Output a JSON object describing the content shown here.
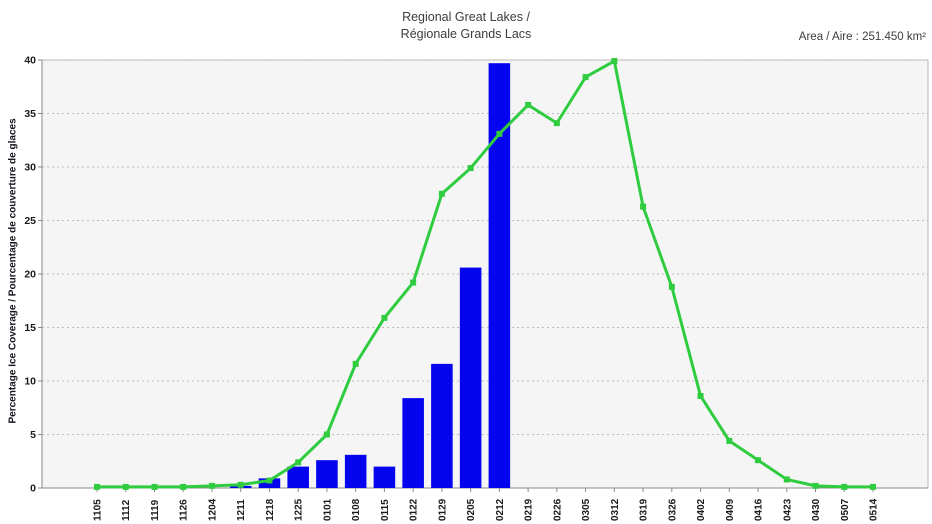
{
  "title": {
    "line1": "Regional Great Lakes /",
    "line2": "Régionale Grands Lacs"
  },
  "header": {
    "area_label": "Area / Aire : 251.450 km²"
  },
  "axes": {
    "y_title": "Percentage Ice Coverage / Pourcentage de couverture de glaces",
    "y_ticks": [
      0,
      5,
      10,
      15,
      20,
      25,
      30,
      35,
      40
    ],
    "y_max": 40
  },
  "colors": {
    "bar": "#0404ee",
    "line": "#2fcc3f",
    "plot_bg": "#f5f5f5",
    "grid": "#bcbcbc",
    "frame": "#b8b8b8",
    "axis": "#8a8a8a",
    "tick_text": "#1a1a1a"
  },
  "chart_data": {
    "type": "bar+line",
    "title": "Regional Great Lakes / Régionale Grands Lacs",
    "subtitle": "Area / Aire : 251.450 km²",
    "xlabel": "",
    "ylabel": "Percentage Ice Coverage / Pourcentage de couverture de glaces",
    "ylim": [
      0,
      40
    ],
    "grid": true,
    "legend": false,
    "categories": [
      "1105",
      "1112",
      "1119",
      "1126",
      "1204",
      "1211",
      "1218",
      "1225",
      "0101",
      "0108",
      "0115",
      "0122",
      "0129",
      "0205",
      "0212",
      "0219",
      "0226",
      "0305",
      "0312",
      "0319",
      "0326",
      "0402",
      "0409",
      "0416",
      "0423",
      "0430",
      "0507",
      "0514"
    ],
    "series": [
      {
        "name": "ice-coverage-bars",
        "type": "bar",
        "color": "#0404ee",
        "values": [
          0,
          0,
          0,
          0,
          0,
          0.2,
          0.9,
          2.0,
          2.6,
          3.1,
          2.0,
          8.4,
          11.6,
          20.6,
          39.7,
          0,
          0,
          0,
          0,
          0,
          0,
          0,
          0,
          0,
          0,
          0,
          0,
          0
        ]
      },
      {
        "name": "ice-coverage-line",
        "type": "line",
        "color": "#2fcc3f",
        "marker": "square",
        "values": [
          0.1,
          0.1,
          0.1,
          0.1,
          0.2,
          0.3,
          0.7,
          2.4,
          5.0,
          11.6,
          15.9,
          19.2,
          27.5,
          29.9,
          33.1,
          35.8,
          34.1,
          38.4,
          39.9,
          26.3,
          18.8,
          8.6,
          4.4,
          2.6,
          0.8,
          0.2,
          0.1,
          0.1
        ]
      }
    ]
  }
}
